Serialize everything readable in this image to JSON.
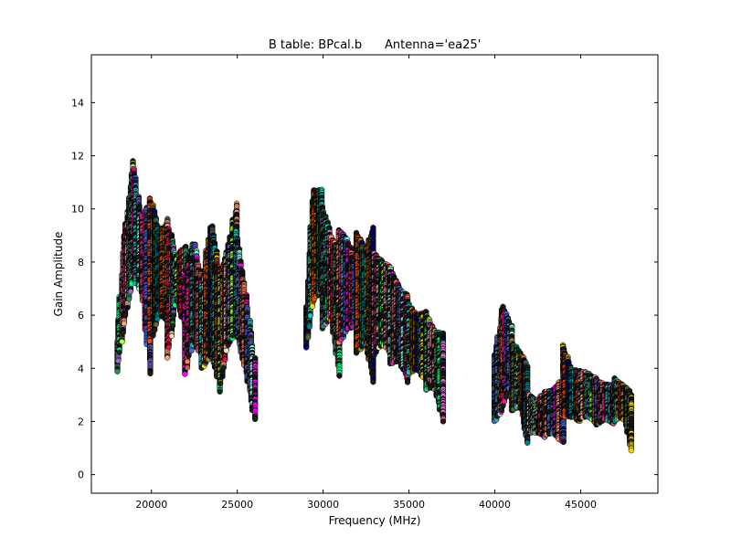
{
  "chart_data": {
    "type": "scatter",
    "title": "B table: BPcal.b      Antenna='ea25'",
    "xlabel": "Frequency (MHz)",
    "ylabel": "Gain Amplitude",
    "xlim": [
      16500,
      49500
    ],
    "ylim": [
      -0.7,
      15.8
    ],
    "xticks": [
      20000,
      25000,
      30000,
      35000,
      40000,
      45000
    ],
    "yticks": [
      0,
      2,
      4,
      6,
      8,
      10,
      12,
      14
    ],
    "grid": false,
    "legend": "none",
    "marker": "circle",
    "spw_bands": [
      {
        "start": 18000,
        "end": 18950,
        "profile": [
          [
            0,
            3.9,
            5.0
          ],
          [
            0.4,
            5.5,
            8.7
          ],
          [
            1,
            7.5,
            11.8
          ]
        ]
      },
      {
        "start": 18950,
        "end": 19950,
        "profile": [
          [
            0,
            7.4,
            11.5
          ],
          [
            0.5,
            6.8,
            9.6
          ],
          [
            1,
            3.8,
            10.3
          ]
        ]
      },
      {
        "start": 19950,
        "end": 20950,
        "profile": [
          [
            0,
            5.0,
            10.4
          ],
          [
            0.5,
            6.2,
            9.0
          ],
          [
            1,
            5.7,
            9.6
          ]
        ]
      },
      {
        "start": 20950,
        "end": 21950,
        "profile": [
          [
            0,
            4.4,
            9.5
          ],
          [
            0.5,
            6.6,
            8.2
          ],
          [
            1,
            5.6,
            8.6
          ]
        ]
      },
      {
        "start": 21950,
        "end": 22950,
        "profile": [
          [
            0,
            3.8,
            7.5
          ],
          [
            0.5,
            5.0,
            8.8
          ],
          [
            1,
            4.5,
            7.4
          ]
        ]
      },
      {
        "start": 22950,
        "end": 23950,
        "profile": [
          [
            0,
            4.0,
            7.1
          ],
          [
            0.5,
            4.5,
            9.5
          ],
          [
            1,
            3.5,
            7.8
          ]
        ]
      },
      {
        "start": 23950,
        "end": 24950,
        "profile": [
          [
            0,
            3.1,
            7.2
          ],
          [
            0.5,
            4.8,
            8.5
          ],
          [
            1,
            5.5,
            10.2
          ]
        ]
      },
      {
        "start": 24950,
        "end": 26000,
        "profile": [
          [
            0,
            5.4,
            9.3
          ],
          [
            0.5,
            4.0,
            7.0
          ],
          [
            1,
            2.1,
            4.4
          ]
        ]
      },
      {
        "start": 29000,
        "end": 29950,
        "profile": [
          [
            0,
            4.8,
            6.3
          ],
          [
            0.4,
            6.5,
            10.7
          ],
          [
            1,
            7.0,
            10.7
          ]
        ]
      },
      {
        "start": 29950,
        "end": 30950,
        "profile": [
          [
            0,
            5.5,
            10.1
          ],
          [
            0.5,
            6.0,
            9.0
          ],
          [
            1,
            3.7,
            8.4
          ]
        ]
      },
      {
        "start": 30950,
        "end": 31950,
        "profile": [
          [
            0,
            5.0,
            9.2
          ],
          [
            0.5,
            5.5,
            8.8
          ],
          [
            1,
            5.6,
            7.9
          ]
        ]
      },
      {
        "start": 31950,
        "end": 32950,
        "profile": [
          [
            0,
            4.6,
            9.1
          ],
          [
            0.5,
            5.0,
            8.4
          ],
          [
            1,
            3.5,
            9.3
          ]
        ]
      },
      {
        "start": 32950,
        "end": 33950,
        "profile": [
          [
            0,
            4.5,
            8.3
          ],
          [
            0.5,
            5.0,
            8.0
          ],
          [
            1,
            4.5,
            7.8
          ]
        ]
      },
      {
        "start": 33950,
        "end": 34950,
        "profile": [
          [
            0,
            4.2,
            7.7
          ],
          [
            0.5,
            4.3,
            7.0
          ],
          [
            1,
            3.5,
            6.7
          ]
        ]
      },
      {
        "start": 34950,
        "end": 35950,
        "profile": [
          [
            0,
            3.8,
            6.4
          ],
          [
            0.5,
            4.0,
            6.0
          ],
          [
            1,
            3.6,
            6.1
          ]
        ]
      },
      {
        "start": 35950,
        "end": 37000,
        "profile": [
          [
            0,
            3.2,
            6.1
          ],
          [
            0.5,
            3.3,
            5.4
          ],
          [
            1,
            2.0,
            5.3
          ]
        ]
      },
      {
        "start": 40000,
        "end": 40950,
        "profile": [
          [
            0,
            2.0,
            4.5
          ],
          [
            0.5,
            2.5,
            6.4
          ],
          [
            1,
            3.4,
            5.6
          ]
        ]
      },
      {
        "start": 40950,
        "end": 41950,
        "profile": [
          [
            0,
            2.4,
            5.0
          ],
          [
            0.5,
            2.6,
            4.6
          ],
          [
            1,
            1.2,
            4.1
          ]
        ]
      },
      {
        "start": 41950,
        "end": 42950,
        "profile": [
          [
            0,
            1.6,
            3.0
          ],
          [
            0.5,
            1.6,
            2.8
          ],
          [
            1,
            1.4,
            3.1
          ]
        ]
      },
      {
        "start": 42950,
        "end": 43950,
        "profile": [
          [
            0,
            1.5,
            3.1
          ],
          [
            0.5,
            1.6,
            3.2
          ],
          [
            1,
            1.2,
            3.6
          ]
        ]
      },
      {
        "start": 43950,
        "end": 44950,
        "profile": [
          [
            0,
            2.2,
            4.9
          ],
          [
            0.5,
            2.2,
            4.0
          ],
          [
            1,
            2.0,
            3.8
          ]
        ]
      },
      {
        "start": 44950,
        "end": 45950,
        "profile": [
          [
            0,
            2.1,
            3.9
          ],
          [
            0.5,
            2.2,
            3.8
          ],
          [
            1,
            1.9,
            3.6
          ]
        ]
      },
      {
        "start": 45950,
        "end": 46950,
        "profile": [
          [
            0,
            1.9,
            3.5
          ],
          [
            0.5,
            2.1,
            3.4
          ],
          [
            1,
            1.9,
            3.3
          ]
        ]
      },
      {
        "start": 46950,
        "end": 48000,
        "profile": [
          [
            0,
            2.0,
            3.6
          ],
          [
            0.5,
            2.2,
            3.4
          ],
          [
            1,
            0.9,
            3.0
          ]
        ]
      }
    ],
    "palette": [
      "#2e8b57",
      "#00ced1",
      "#ff7f50",
      "#9370db",
      "#ffd700",
      "#ff1493",
      "#00ff7f",
      "#8b4513",
      "#4169e1",
      "#adff2f",
      "#ff4500",
      "#20b2aa",
      "#da70d6",
      "#b8860b",
      "#6a5acd",
      "#ffa07a",
      "#000080",
      "#7fffd4",
      "#dc143c",
      "#556b2f",
      "#ff00ff",
      "#f5deb3",
      "#008080",
      "#cd5c5c"
    ],
    "dark_marker_colors": [
      "#1a1a1a",
      "#0b2a1a",
      "#0a0a2a",
      "#2a1a0a"
    ]
  }
}
